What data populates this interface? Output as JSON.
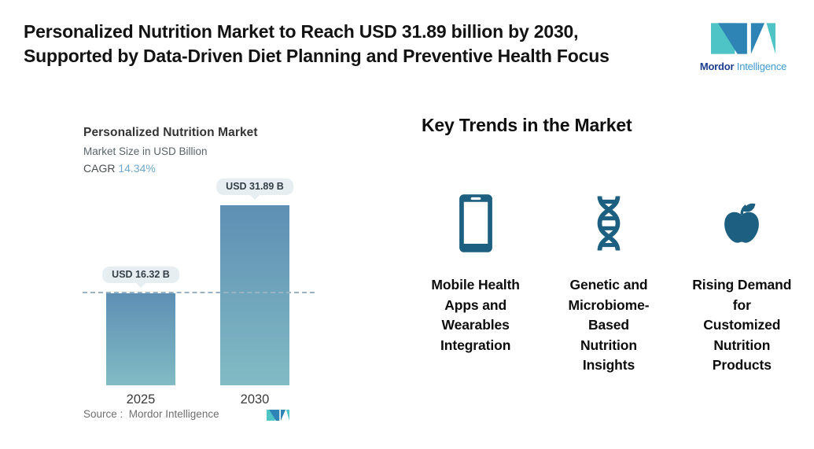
{
  "header": {
    "title_line1": "Personalized Nutrition Market to Reach USD 31.89 billion by 2030,",
    "title_line2": "Supported by Data-Driven Diet Planning and Preventive Health Focus"
  },
  "brand": {
    "name_bold": "Mordor",
    "name_light": " Intelligence",
    "colors": {
      "blue": "#2d84b5",
      "teal": "#4fc4c6",
      "navy": "#1c3e8f",
      "light_blue": "#3e9ad2"
    }
  },
  "chart_data": {
    "type": "bar",
    "title": "Personalized Nutrition Market",
    "subtitle": "Market Size in USD Billion",
    "cagr_label": "CAGR ",
    "cagr_value": "14.34%",
    "categories": [
      "2025",
      "2030"
    ],
    "values": [
      16.32,
      31.89
    ],
    "bar_labels": [
      "USD 16.32 B",
      "USD 31.89 B"
    ],
    "ylabel": "Market Size in USD Billion",
    "ylim": [
      0,
      32
    ],
    "grid": false,
    "reference_line": {
      "value": 16.32,
      "style": "dashed"
    },
    "colors": {
      "bar_top": "#5d8fb4",
      "bar_bottom": "#82bbc4",
      "pill_bg": "#e7eef1",
      "pill_text": "#333f47",
      "dashed_line": "#9ab3c4",
      "cagr_value_color": "#6fa9cf"
    }
  },
  "source": {
    "label": "Source :  Mordor Intelligence"
  },
  "trends": {
    "heading": "Key Trends in the Market",
    "icon_color": "#1d5f80",
    "items": [
      {
        "icon": "smartphone-icon",
        "label": "Mobile Health\nApps and\nWearables\nIntegration"
      },
      {
        "icon": "dna-icon",
        "label": "Genetic and\nMicrobiome-\nBased\nNutrition\nInsights"
      },
      {
        "icon": "apple-icon",
        "label": "Rising Demand\nfor\nCustomized\nNutrition\nProducts"
      }
    ]
  }
}
